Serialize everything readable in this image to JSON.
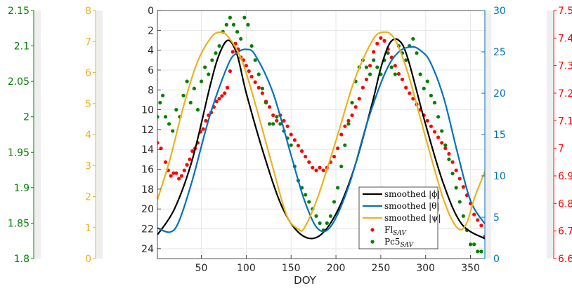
{
  "chart_data": {
    "type": "line",
    "xlabel": "DOY",
    "xlim": [
      1,
      366
    ],
    "xticks": [
      50,
      100,
      150,
      200,
      250,
      300,
      350
    ],
    "grid": true,
    "legend_position": "bottom-right",
    "axes": {
      "left_main": {
        "label": "",
        "lim": [
          0,
          25
        ],
        "reversed": true,
        "ticks": [
          0,
          2,
          4,
          6,
          8,
          10,
          12,
          14,
          16,
          18,
          20,
          22,
          24
        ],
        "color": "#000000"
      },
      "right_theta": {
        "label": "",
        "lim": [
          0,
          30
        ],
        "ticks": [
          0,
          5,
          10,
          15,
          20,
          25,
          30
        ],
        "color": "#0072bd"
      },
      "right_fl": {
        "label": "",
        "lim": [
          6.6,
          7.5
        ],
        "ticks": [
          "6.6",
          "6.7",
          "6.8",
          "6.9",
          "7",
          "7.1",
          "7.2",
          "7.3",
          "7.4",
          "7.5"
        ],
        "color": "#ff0000"
      },
      "left_pc5": {
        "label": "",
        "lim": [
          1.8,
          2.15
        ],
        "ticks": [
          "1.8",
          "1.85",
          "1.9",
          "1.95",
          "2",
          "2.05",
          "2.1",
          "2.15"
        ],
        "color": "#008000"
      },
      "left_psi": {
        "label": "",
        "lim": [
          0,
          8
        ],
        "ticks": [
          0,
          1,
          2,
          3,
          4,
          5,
          6,
          7,
          8
        ],
        "color": "#edb120"
      }
    },
    "series": [
      {
        "id": "phi",
        "legend": "smoothed |ϕ|",
        "style": "line",
        "color": "#000000",
        "axis": "left_main",
        "x": [
          1,
          20,
          40,
          60,
          70,
          80,
          90,
          100,
          120,
          140,
          160,
          180,
          200,
          220,
          240,
          250,
          260,
          270,
          280,
          300,
          320,
          340,
          366
        ],
        "y": [
          22.6,
          20.0,
          15.0,
          7.5,
          4.4,
          3.0,
          4.5,
          8.3,
          14.6,
          19.8,
          22.5,
          22.8,
          20.5,
          16.0,
          9.5,
          5.8,
          3.3,
          3.0,
          4.8,
          11.5,
          17.5,
          21.5,
          23.0
        ]
      },
      {
        "id": "theta",
        "legend": "smoothed |θ|",
        "style": "line",
        "color": "#0072bd",
        "axis": "right_theta",
        "x": [
          1,
          15,
          25,
          40,
          60,
          80,
          90,
          100,
          110,
          130,
          150,
          165,
          180,
          195,
          215,
          235,
          255,
          270,
          285,
          295,
          305,
          320,
          335,
          350,
          366
        ],
        "y": [
          3.7,
          3.2,
          4.5,
          9.5,
          17.5,
          23.5,
          24.9,
          25.3,
          24.6,
          20.0,
          12.5,
          7.0,
          3.6,
          4.0,
          9.0,
          16.5,
          22.5,
          25.0,
          25.6,
          25.1,
          23.8,
          19.5,
          13.0,
          7.0,
          4.2
        ]
      },
      {
        "id": "psi",
        "legend": "smoothed |ψ|",
        "style": "line",
        "color": "#edb120",
        "axis": "left_psi",
        "x": [
          1,
          15,
          30,
          45,
          60,
          70,
          80,
          95,
          110,
          130,
          145,
          158,
          165,
          180,
          200,
          220,
          240,
          252,
          265,
          280,
          300,
          320,
          335,
          345,
          355,
          366
        ],
        "y": [
          1.9,
          3.2,
          4.9,
          6.3,
          7.1,
          7.3,
          7.15,
          6.4,
          5.0,
          2.9,
          1.4,
          0.95,
          1.0,
          2.0,
          3.8,
          5.7,
          7.0,
          7.3,
          7.1,
          6.0,
          3.9,
          1.9,
          1.0,
          1.1,
          2.0,
          2.8
        ]
      },
      {
        "id": "fl",
        "legend": "Fl",
        "legend_sub": "SAV",
        "style": "scatter",
        "color": "#ff0000",
        "axis": "right_fl",
        "x": [
          1,
          5,
          10,
          13,
          16,
          19,
          22,
          25,
          28,
          31,
          34,
          37,
          40,
          43,
          46,
          49,
          52,
          55,
          58,
          61,
          64,
          67,
          70,
          73,
          76,
          79,
          82,
          85,
          88,
          91,
          94,
          97,
          100,
          103,
          106,
          110,
          114,
          118,
          122,
          126,
          130,
          134,
          138,
          142,
          146,
          150,
          154,
          158,
          162,
          166,
          170,
          174,
          178,
          182,
          186,
          190,
          194,
          198,
          202,
          206,
          210,
          214,
          218,
          222,
          226,
          230,
          234,
          238,
          242,
          246,
          250,
          254,
          258,
          262,
          266,
          270,
          274,
          278,
          282,
          286,
          290,
          294,
          298,
          302,
          306,
          310,
          314,
          318,
          322,
          326,
          330,
          334,
          338,
          342,
          346,
          350,
          354,
          358,
          362,
          366
        ],
        "y": [
          7.02,
          7.0,
          6.95,
          6.92,
          6.9,
          6.91,
          6.91,
          6.89,
          6.9,
          6.92,
          6.94,
          6.96,
          6.99,
          7.0,
          7.02,
          7.06,
          7.07,
          7.1,
          7.12,
          7.13,
          7.15,
          7.17,
          7.18,
          7.19,
          7.2,
          7.22,
          7.28,
          7.35,
          7.38,
          7.36,
          7.33,
          7.32,
          7.3,
          7.28,
          7.26,
          7.24,
          7.22,
          7.2,
          7.17,
          7.15,
          7.12,
          7.1,
          7.12,
          7.1,
          7.08,
          7.05,
          7.03,
          7.01,
          6.99,
          6.97,
          6.95,
          6.93,
          6.92,
          6.93,
          6.92,
          6.93,
          6.95,
          6.97,
          7.0,
          7.05,
          7.08,
          7.1,
          7.12,
          7.15,
          7.18,
          7.22,
          7.25,
          7.3,
          7.35,
          7.38,
          7.4,
          7.39,
          7.36,
          7.33,
          7.3,
          7.27,
          7.25,
          7.22,
          7.2,
          7.18,
          7.16,
          7.14,
          7.12,
          7.1,
          7.08,
          7.06,
          7.04,
          7.02,
          7.0,
          6.98,
          6.95,
          6.92,
          6.89,
          6.86,
          6.83,
          6.8,
          6.76,
          6.74,
          6.72,
          6.68
        ]
      },
      {
        "id": "pc5",
        "legend": "Pc5",
        "legend_sub": "SAV",
        "style": "scatter",
        "color": "#008000",
        "axis": "left_pc5",
        "x": [
          1,
          4,
          7,
          10,
          14,
          18,
          22,
          26,
          30,
          34,
          38,
          42,
          46,
          50,
          54,
          58,
          62,
          66,
          70,
          74,
          78,
          82,
          86,
          90,
          94,
          98,
          102,
          106,
          110,
          114,
          118,
          122,
          126,
          130,
          134,
          138,
          142,
          146,
          150,
          154,
          158,
          162,
          166,
          170,
          174,
          178,
          182,
          186,
          190,
          194,
          198,
          202,
          206,
          210,
          214,
          218,
          222,
          226,
          230,
          234,
          238,
          242,
          246,
          250,
          254,
          258,
          262,
          266,
          270,
          274,
          278,
          282,
          286,
          290,
          294,
          298,
          302,
          306,
          310,
          314,
          318,
          322,
          326,
          330,
          334,
          338,
          342,
          346,
          350,
          354,
          358,
          362
        ],
        "y": [
          2.0,
          2.02,
          2.03,
          2.0,
          1.99,
          1.98,
          2.01,
          2.0,
          2.03,
          2.05,
          2.02,
          2.04,
          2.01,
          2.05,
          2.07,
          2.06,
          2.08,
          2.09,
          2.1,
          2.12,
          2.13,
          2.14,
          2.13,
          2.12,
          2.11,
          2.14,
          2.13,
          2.1,
          2.08,
          2.06,
          2.04,
          2.02,
          1.99,
          1.99,
          2.0,
          1.99,
          1.98,
          1.97,
          1.96,
          1.93,
          1.91,
          1.9,
          1.89,
          1.88,
          1.87,
          1.86,
          1.85,
          1.84,
          1.85,
          1.86,
          1.88,
          1.9,
          1.93,
          1.96,
          1.99,
          2.02,
          2.05,
          2.07,
          2.08,
          2.07,
          2.06,
          2.08,
          2.07,
          2.06,
          2.08,
          2.09,
          2.07,
          2.06,
          2.1,
          2.09,
          2.08,
          2.1,
          2.11,
          2.09,
          2.06,
          2.04,
          2.05,
          2.03,
          2.02,
          2.0,
          1.98,
          1.96,
          1.94,
          1.92,
          1.9,
          1.88,
          1.86,
          1.84,
          1.82,
          1.82,
          1.81,
          1.81
        ]
      }
    ]
  }
}
